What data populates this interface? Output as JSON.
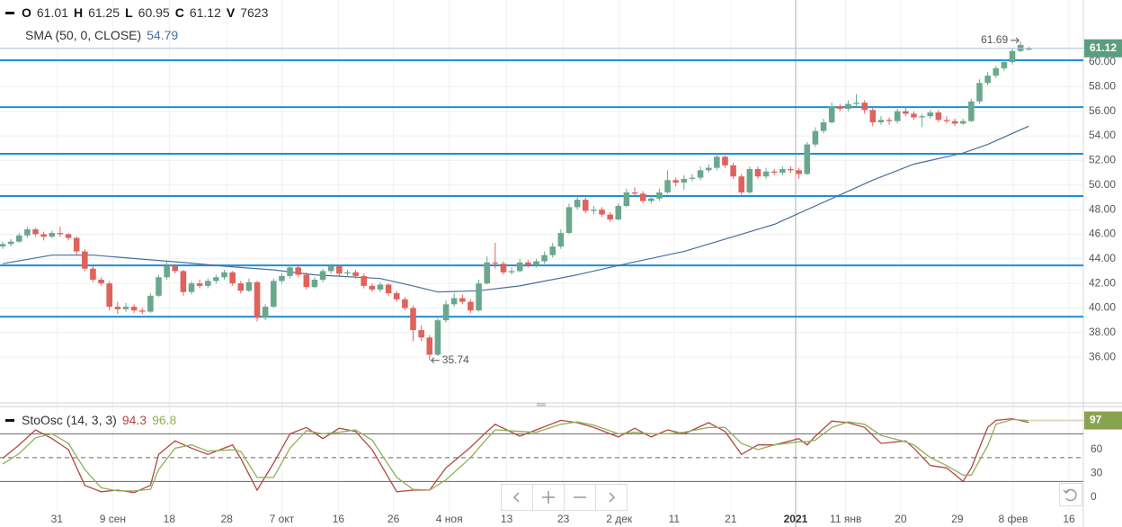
{
  "chart_data": {
    "type": "candlestick",
    "header_labels": [
      "O",
      "H",
      "L",
      "C",
      "V"
    ],
    "volume": 7623,
    "candle_colors": {
      "up": "#6aa88e",
      "down": "#e0625c"
    },
    "candles": [
      [
        45.0,
        45.4,
        44.8,
        45.2
      ],
      [
        45.2,
        45.6,
        45.0,
        45.4
      ],
      [
        45.4,
        46.1,
        45.3,
        45.9
      ],
      [
        45.9,
        46.6,
        45.7,
        46.4
      ],
      [
        46.4,
        46.5,
        45.8,
        46.0
      ],
      [
        46.0,
        46.2,
        45.5,
        45.8
      ],
      [
        45.8,
        46.3,
        45.7,
        46.1
      ],
      [
        46.1,
        46.6,
        45.8,
        46.0
      ],
      [
        46.0,
        46.1,
        45.5,
        45.7
      ],
      [
        45.7,
        45.8,
        44.3,
        44.6
      ],
      [
        44.6,
        44.8,
        43.0,
        43.2
      ],
      [
        43.2,
        43.4,
        42.1,
        42.3
      ],
      [
        42.3,
        42.5,
        41.8,
        42.0
      ],
      [
        42.0,
        42.2,
        39.8,
        40.1
      ],
      [
        40.1,
        40.5,
        39.5,
        39.9
      ],
      [
        39.9,
        40.4,
        39.7,
        40.1
      ],
      [
        40.1,
        40.3,
        39.6,
        39.8
      ],
      [
        39.8,
        40.0,
        39.5,
        39.7
      ],
      [
        39.7,
        41.2,
        39.6,
        41.0
      ],
      [
        41.0,
        42.7,
        40.9,
        42.5
      ],
      [
        42.5,
        43.8,
        42.3,
        43.4
      ],
      [
        43.4,
        43.6,
        42.8,
        43.0
      ],
      [
        43.0,
        43.1,
        41.0,
        41.3
      ],
      [
        41.3,
        42.2,
        41.1,
        42.0
      ],
      [
        42.0,
        42.3,
        41.6,
        41.8
      ],
      [
        41.8,
        42.4,
        41.6,
        42.2
      ],
      [
        42.2,
        42.7,
        42.0,
        42.5
      ],
      [
        42.5,
        43.1,
        42.3,
        42.9
      ],
      [
        42.9,
        43.0,
        41.8,
        42.0
      ],
      [
        42.0,
        42.2,
        41.2,
        41.4
      ],
      [
        41.4,
        42.4,
        41.3,
        42.1
      ],
      [
        42.1,
        42.2,
        38.9,
        39.2
      ],
      [
        39.2,
        40.3,
        39.0,
        40.1
      ],
      [
        40.1,
        42.4,
        40.0,
        42.2
      ],
      [
        42.2,
        42.8,
        42.0,
        42.6
      ],
      [
        42.6,
        43.5,
        42.4,
        43.3
      ],
      [
        43.3,
        43.4,
        42.5,
        42.7
      ],
      [
        42.7,
        42.9,
        41.5,
        41.7
      ],
      [
        41.7,
        42.5,
        41.6,
        42.3
      ],
      [
        42.3,
        43.2,
        42.1,
        43.0
      ],
      [
        43.0,
        43.6,
        42.8,
        43.4
      ],
      [
        43.4,
        43.5,
        42.6,
        42.8
      ],
      [
        42.8,
        43.1,
        42.5,
        42.9
      ],
      [
        42.9,
        43.1,
        42.4,
        42.6
      ],
      [
        42.6,
        42.8,
        41.6,
        41.8
      ],
      [
        41.8,
        42.0,
        41.3,
        41.5
      ],
      [
        41.5,
        42.1,
        41.3,
        41.9
      ],
      [
        41.9,
        42.0,
        41.0,
        41.2
      ],
      [
        41.2,
        41.4,
        40.5,
        40.7
      ],
      [
        40.7,
        40.9,
        39.8,
        40.0
      ],
      [
        40.0,
        40.2,
        37.3,
        38.2
      ],
      [
        38.2,
        38.6,
        37.3,
        37.6
      ],
      [
        37.6,
        37.8,
        35.74,
        36.2
      ],
      [
        36.2,
        39.3,
        36.1,
        39.0
      ],
      [
        39.0,
        40.6,
        38.8,
        40.3
      ],
      [
        40.3,
        41.2,
        40.1,
        40.8
      ],
      [
        40.8,
        41.1,
        40.3,
        40.5
      ],
      [
        40.5,
        40.7,
        39.6,
        39.8
      ],
      [
        39.8,
        42.3,
        39.7,
        42.0
      ],
      [
        42.0,
        44.2,
        41.9,
        43.7
      ],
      [
        43.7,
        45.3,
        43.2,
        43.6
      ],
      [
        43.6,
        43.8,
        42.7,
        42.9
      ],
      [
        42.9,
        43.3,
        42.7,
        43.0
      ],
      [
        43.0,
        44.0,
        42.9,
        43.7
      ],
      [
        43.7,
        43.9,
        43.3,
        43.5
      ],
      [
        43.5,
        44.0,
        43.3,
        43.8
      ],
      [
        43.8,
        44.6,
        43.6,
        44.3
      ],
      [
        44.3,
        45.3,
        44.1,
        45.0
      ],
      [
        45.0,
        46.4,
        44.8,
        46.1
      ],
      [
        46.1,
        48.5,
        46.0,
        48.2
      ],
      [
        48.2,
        49.1,
        48.0,
        48.8
      ],
      [
        48.8,
        49.0,
        47.7,
        47.9
      ],
      [
        47.9,
        48.3,
        47.6,
        48.0
      ],
      [
        48.0,
        48.2,
        47.4,
        47.6
      ],
      [
        47.6,
        47.8,
        47.0,
        47.2
      ],
      [
        47.2,
        48.5,
        47.1,
        48.3
      ],
      [
        48.3,
        49.7,
        48.2,
        49.4
      ],
      [
        49.4,
        49.8,
        49.1,
        49.3
      ],
      [
        49.3,
        49.5,
        48.5,
        48.7
      ],
      [
        48.7,
        49.2,
        48.5,
        48.9
      ],
      [
        48.9,
        49.7,
        48.7,
        49.4
      ],
      [
        49.4,
        51.2,
        49.3,
        50.4
      ],
      [
        50.4,
        50.6,
        49.9,
        50.2
      ],
      [
        50.2,
        50.8,
        49.6,
        50.5
      ],
      [
        50.5,
        50.9,
        50.3,
        50.6
      ],
      [
        50.6,
        51.5,
        50.4,
        51.2
      ],
      [
        51.2,
        51.7,
        51.0,
        51.4
      ],
      [
        51.4,
        52.6,
        51.2,
        52.3
      ],
      [
        52.3,
        52.4,
        51.4,
        51.6
      ],
      [
        51.6,
        51.8,
        50.5,
        50.7
      ],
      [
        50.7,
        50.9,
        49.2,
        49.4
      ],
      [
        49.4,
        51.5,
        49.3,
        51.3
      ],
      [
        51.3,
        51.5,
        50.5,
        50.7
      ],
      [
        50.7,
        51.4,
        50.5,
        51.1
      ],
      [
        51.1,
        51.3,
        50.8,
        51.0
      ],
      [
        51.0,
        51.5,
        50.8,
        51.3
      ],
      [
        51.3,
        51.5,
        51.0,
        51.2
      ],
      [
        51.2,
        51.4,
        50.5,
        50.9
      ],
      [
        50.9,
        53.5,
        50.8,
        53.3
      ],
      [
        53.3,
        54.7,
        53.1,
        54.4
      ],
      [
        54.4,
        55.4,
        54.2,
        55.1
      ],
      [
        55.1,
        56.7,
        55.0,
        56.4
      ],
      [
        56.4,
        56.6,
        56.0,
        56.2
      ],
      [
        56.2,
        56.9,
        56.0,
        56.6
      ],
      [
        56.6,
        57.4,
        56.3,
        56.7
      ],
      [
        56.7,
        56.9,
        55.8,
        56.1
      ],
      [
        56.1,
        56.3,
        54.8,
        55.1
      ],
      [
        55.1,
        55.6,
        54.9,
        55.3
      ],
      [
        55.3,
        55.5,
        54.9,
        55.2
      ],
      [
        55.2,
        56.2,
        55.0,
        56.0
      ],
      [
        56.0,
        56.4,
        55.6,
        55.8
      ],
      [
        55.8,
        56.0,
        55.3,
        55.5
      ],
      [
        55.5,
        55.8,
        54.7,
        55.6
      ],
      [
        55.6,
        56.1,
        55.4,
        55.9
      ],
      [
        55.9,
        56.1,
        55.1,
        55.3
      ],
      [
        55.3,
        55.6,
        55.0,
        55.2
      ],
      [
        55.2,
        55.4,
        54.8,
        55.0
      ],
      [
        55.0,
        55.4,
        54.9,
        55.2
      ],
      [
        55.2,
        57.0,
        55.1,
        56.8
      ],
      [
        56.8,
        58.6,
        56.6,
        58.3
      ],
      [
        58.3,
        59.2,
        58.1,
        58.9
      ],
      [
        58.9,
        59.7,
        58.7,
        59.5
      ],
      [
        59.5,
        60.2,
        59.3,
        60.0
      ],
      [
        60.0,
        61.1,
        59.8,
        60.9
      ],
      [
        60.9,
        61.69,
        60.8,
        61.4
      ],
      [
        61.01,
        61.25,
        60.95,
        61.12
      ]
    ],
    "xlim": [
      -0.33,
      131.65
    ],
    "xticks": [
      {
        "value": 6.6,
        "label": "31"
      },
      {
        "value": 13.4,
        "label": "9 сен"
      },
      {
        "value": 20.3,
        "label": "18"
      },
      {
        "value": 27.3,
        "label": "28"
      },
      {
        "value": 34.0,
        "label": "7 окт"
      },
      {
        "value": 40.9,
        "label": "16"
      },
      {
        "value": 47.6,
        "label": "26"
      },
      {
        "value": 54.4,
        "label": "4 ноя"
      },
      {
        "value": 61.4,
        "label": "13"
      },
      {
        "value": 68.3,
        "label": "23"
      },
      {
        "value": 75.1,
        "label": "2 дек"
      },
      {
        "value": 81.8,
        "label": "11"
      },
      {
        "value": 88.7,
        "label": "21"
      },
      {
        "value": 96.6,
        "label": "2021"
      },
      {
        "value": 102.7,
        "label": "11 янв"
      },
      {
        "value": 109.4,
        "label": "20"
      },
      {
        "value": 116.3,
        "label": "29"
      },
      {
        "value": 123.1,
        "label": "8 фев"
      },
      {
        "value": 129.9,
        "label": "16"
      }
    ],
    "ylim": [
      32.5,
      65.05
    ],
    "yticks": [
      {
        "value": 36,
        "label": "36.00"
      },
      {
        "value": 38,
        "label": "38.00"
      },
      {
        "value": 40,
        "label": "40.00"
      },
      {
        "value": 42,
        "label": "42.00"
      },
      {
        "value": 44,
        "label": "44.00"
      },
      {
        "value": 46,
        "label": "46.00"
      },
      {
        "value": 48,
        "label": "48.00"
      },
      {
        "value": 50,
        "label": "50.00"
      },
      {
        "value": 52,
        "label": "52.00"
      },
      {
        "value": 54,
        "label": "54.00"
      },
      {
        "value": 56,
        "label": "56.00"
      },
      {
        "value": 58,
        "label": "58.00"
      },
      {
        "value": 60,
        "label": "60.00"
      }
    ],
    "grid": true,
    "price_color": "#5a9e7f",
    "levels": {
      "color": "#1f8fd6",
      "values": [
        60.15,
        56.34,
        52.54,
        49.1,
        43.46,
        39.29
      ]
    },
    "sma": {
      "name": "SMA (50, 0, CLOSE)",
      "color": "#4a6e9e",
      "x": [
        0,
        6,
        11,
        22,
        27,
        33,
        38,
        46,
        50,
        53,
        58,
        63,
        70,
        76,
        83,
        89,
        94,
        97,
        102,
        106,
        111,
        117,
        120,
        125
      ],
      "values": [
        43.6,
        44.3,
        44.3,
        43.7,
        43.4,
        43.1,
        42.7,
        42.4,
        41.8,
        41.3,
        41.4,
        41.8,
        42.7,
        43.6,
        44.6,
        45.8,
        46.8,
        47.7,
        49.2,
        50.4,
        51.7,
        52.6,
        53.3,
        54.79
      ]
    },
    "oscillator": {
      "type": "line",
      "name": "StoOsc (14, 3, 3)",
      "ylim": [
        -37.4,
        114.4
      ],
      "yticks": [
        0,
        30,
        60
      ],
      "bands": [
        20,
        50,
        80
      ],
      "x": [
        0,
        2,
        4,
        6,
        8,
        10,
        12,
        14,
        16,
        18,
        19,
        21,
        23,
        25,
        28,
        29,
        31,
        33,
        35,
        37,
        39,
        41,
        43,
        45,
        48,
        50,
        52,
        54,
        57,
        59,
        60,
        63,
        65,
        68,
        70,
        72,
        75,
        77,
        79,
        81,
        83,
        86,
        88,
        90,
        92,
        94,
        97,
        98,
        99,
        101,
        103,
        105,
        107,
        110,
        111,
        113,
        115,
        117,
        118,
        120,
        121,
        123,
        125
      ],
      "series": [
        {
          "color": "#b5463f",
          "values": [
            49,
            66,
            85,
            74,
            60,
            15,
            7,
            9,
            6,
            15,
            54,
            71,
            62,
            54,
            66,
            49,
            9,
            43,
            80,
            88,
            74,
            87,
            83,
            60,
            7,
            9,
            9,
            37,
            63,
            83,
            92,
            77,
            85,
            97,
            94,
            88,
            76,
            87,
            76,
            85,
            80,
            94,
            83,
            54,
            66,
            66,
            74,
            66,
            77,
            96,
            94,
            88,
            68,
            71,
            62,
            40,
            37,
            20,
            37,
            88,
            97,
            99,
            94.3
          ]
        },
        {
          "color": "#8fb05a",
          "values": [
            42,
            55,
            75,
            80,
            68,
            35,
            12,
            8,
            8,
            10,
            35,
            62,
            66,
            58,
            60,
            58,
            25,
            25,
            62,
            84,
            80,
            82,
            85,
            72,
            25,
            10,
            9,
            22,
            50,
            74,
            85,
            83,
            82,
            92,
            95,
            91,
            80,
            82,
            80,
            80,
            82,
            88,
            88,
            68,
            60,
            66,
            70,
            70,
            72,
            88,
            95,
            92,
            78,
            70,
            66,
            50,
            40,
            28,
            28,
            65,
            92,
            98,
            96.8
          ]
        }
      ],
      "last_label": {
        "value": 96.8,
        "label": "97"
      },
      "last_color": "#86a34e"
    }
  }
}
